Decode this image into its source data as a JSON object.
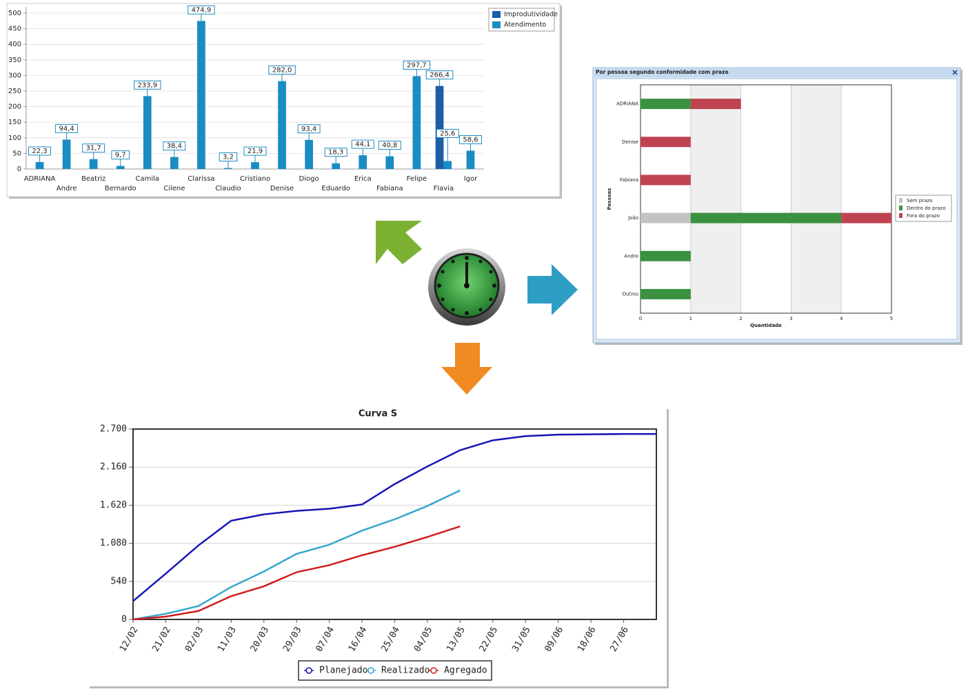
{
  "chart_data": [
    {
      "type": "bar",
      "categories": [
        "ADRIANA",
        "Andre",
        "Beatriz",
        "Bernardo",
        "Camila",
        "Cilene",
        "Clarissa",
        "Claudio",
        "Cristiano",
        "Denise",
        "Diogo",
        "Eduardo",
        "Erica",
        "Fabiana",
        "Felipe",
        "Flavia",
        "Igor"
      ],
      "series": [
        {
          "name": "Improdutividade",
          "color": "#1b5ea6",
          "values": [
            null,
            null,
            null,
            null,
            null,
            null,
            null,
            null,
            null,
            null,
            null,
            null,
            null,
            null,
            null,
            266.4,
            null
          ],
          "value_labels": [
            null,
            null,
            null,
            null,
            null,
            null,
            null,
            null,
            null,
            null,
            null,
            null,
            null,
            null,
            null,
            "266,4",
            null
          ]
        },
        {
          "name": "Atendimento",
          "color": "#1a8cc2",
          "values": [
            22.3,
            94.4,
            31.7,
            9.7,
            233.9,
            38.4,
            474.9,
            3.2,
            21.9,
            282.0,
            93.4,
            18.3,
            44.1,
            40.8,
            297.7,
            25.6,
            58.6
          ],
          "value_labels": [
            "22,3",
            "94,4",
            "31,7",
            "9,7",
            "233,9",
            "38,4",
            "474,9",
            "3,2",
            "21,9",
            "282,0",
            "93,4",
            "18,3",
            "44,1",
            "40,8",
            "297,7",
            "25,6",
            "58,6"
          ]
        }
      ],
      "ylim": [
        0,
        520
      ],
      "yticks": [
        0,
        50,
        100,
        150,
        200,
        250,
        300,
        350,
        400,
        450,
        500
      ],
      "grid": true,
      "legend": "top-right"
    },
    {
      "type": "barh",
      "title": "Por pessoa segundo conformidade com prazo",
      "x_label": "Quantidade",
      "y_label": "Pessoas",
      "categories": [
        "ADRIANA",
        "Denise",
        "Fabiana",
        "João",
        "Andre",
        "Outros"
      ],
      "series": [
        {
          "name": "Sem prazo",
          "color": "#c3c3c3",
          "values": [
            0,
            0,
            0,
            1,
            0,
            0
          ]
        },
        {
          "name": "Dentro do prazo",
          "color": "#3a9140",
          "values": [
            1,
            0,
            0,
            3,
            1,
            1
          ]
        },
        {
          "name": "Fora do prazo",
          "color": "#bf4350",
          "values": [
            1,
            1,
            1,
            1,
            0,
            0
          ]
        }
      ],
      "xlim": [
        0,
        5
      ],
      "xticks": [
        0,
        1,
        2,
        3,
        4,
        5
      ],
      "stacked": true,
      "legend": "right"
    },
    {
      "type": "line",
      "title": "Curva S",
      "categories": [
        "12/02",
        "21/02",
        "02/03",
        "11/03",
        "20/03",
        "29/03",
        "07/04",
        "16/04",
        "25/04",
        "04/05",
        "13/05",
        "22/05",
        "31/05",
        "09/06",
        "18/06",
        "27/06",
        null
      ],
      "series": [
        {
          "name": "Planejado",
          "color": "#1414b4",
          "values": [
            260,
            650,
            1050,
            1400,
            1490,
            1540,
            1570,
            1630,
            1920,
            2170,
            2400,
            2540,
            2600,
            2620,
            2625,
            2630,
            2630
          ]
        },
        {
          "name": "Realizado",
          "color": "#36a6cc",
          "values": [
            0,
            80,
            190,
            460,
            680,
            930,
            1060,
            1260,
            1420,
            1610,
            1830,
            null,
            null,
            null,
            null,
            null,
            null
          ]
        },
        {
          "name": "Agregado",
          "color": "#d01c1c",
          "values": [
            0,
            40,
            120,
            330,
            470,
            670,
            770,
            910,
            1030,
            1170,
            1320,
            null,
            null,
            null,
            null,
            null,
            null
          ]
        }
      ],
      "ylim": [
        0,
        2700
      ],
      "yticks": [
        0,
        540,
        {
          "value": 1080,
          "label": "1.080"
        },
        {
          "value": 1620,
          "label": "1.620"
        },
        {
          "value": 2160,
          "label": "2.160"
        },
        {
          "value": 2700,
          "label": "2.700"
        }
      ],
      "grid": true,
      "legend": "bottom"
    }
  ]
}
